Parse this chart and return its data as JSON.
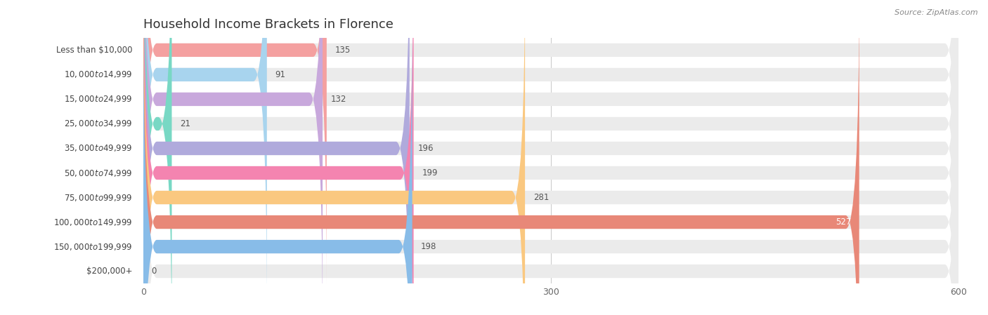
{
  "title": "Household Income Brackets in Florence",
  "source": "Source: ZipAtlas.com",
  "categories": [
    "Less than $10,000",
    "$10,000 to $14,999",
    "$15,000 to $24,999",
    "$25,000 to $34,999",
    "$35,000 to $49,999",
    "$50,000 to $74,999",
    "$75,000 to $99,999",
    "$100,000 to $149,999",
    "$150,000 to $199,999",
    "$200,000+"
  ],
  "values": [
    135,
    91,
    132,
    21,
    196,
    199,
    281,
    527,
    198,
    0
  ],
  "bar_colors": [
    "#F4A0A0",
    "#A8D4EE",
    "#C8A8DC",
    "#78D8C4",
    "#B0AADC",
    "#F484B0",
    "#FAC880",
    "#E88878",
    "#88BCE8",
    "#D4BCDC"
  ],
  "xlim": [
    0,
    600
  ],
  "xticks": [
    0,
    300,
    600
  ],
  "title_fontsize": 13,
  "label_fontsize": 8.5,
  "value_fontsize": 8.5
}
